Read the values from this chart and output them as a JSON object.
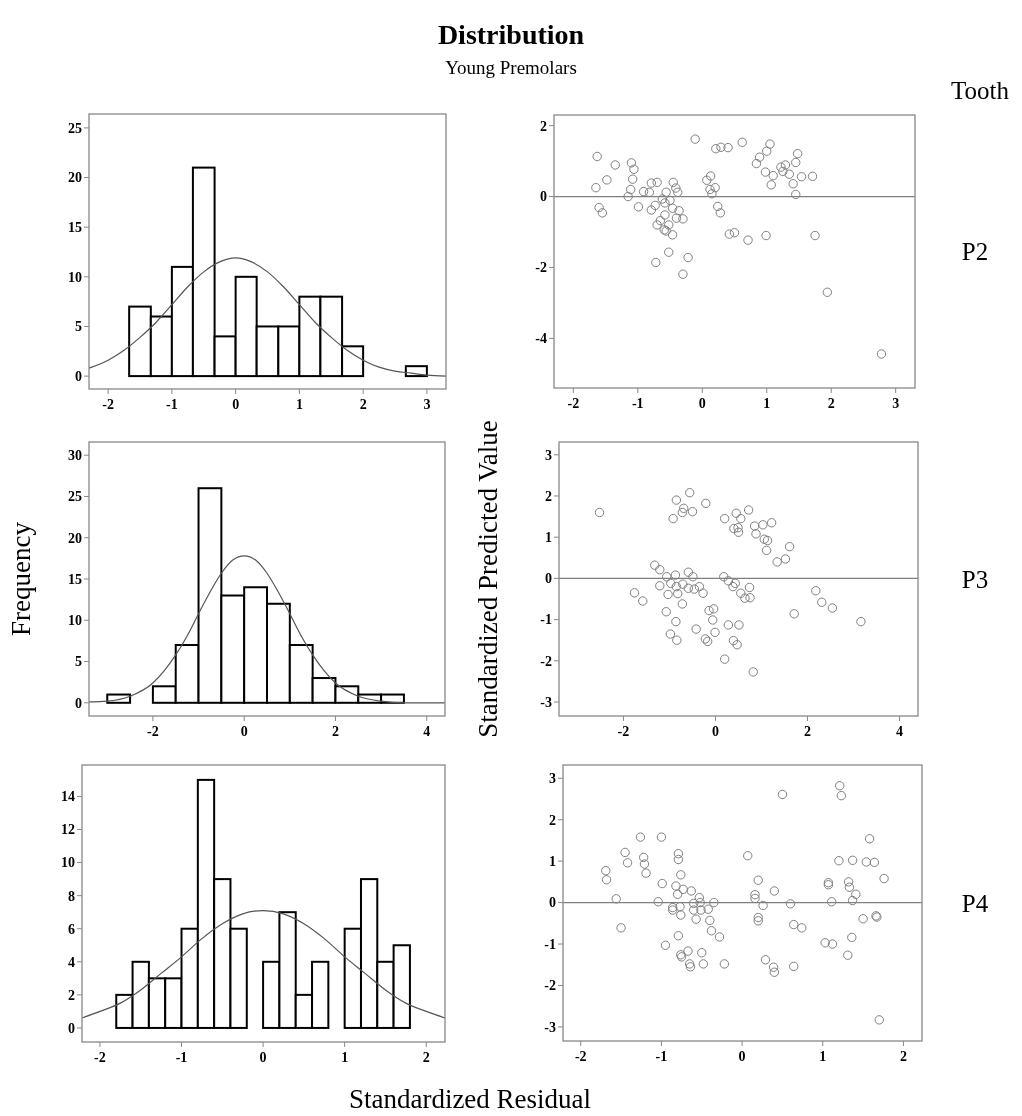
{
  "chart_data": [
    {
      "type": "histogram",
      "title": "Distribution",
      "subtitle": "Young Premolars",
      "bins": [
        -1.67,
        -1.33,
        -1,
        -0.67,
        -0.33,
        0,
        0.33,
        0.67,
        1,
        1.33,
        1.67,
        2,
        2.67,
        3
      ],
      "values": [
        7,
        6,
        11,
        21,
        4,
        10,
        5,
        5,
        8,
        8,
        3,
        0,
        1
      ],
      "color": "#ffffff",
      "xlim": [
        -2.3,
        3.3
      ],
      "ylim": [
        -1.3,
        26.4
      ],
      "xticks": [
        -2,
        -1,
        0,
        1,
        2,
        3
      ],
      "yticks": [
        0,
        5,
        10,
        15,
        20,
        25
      ],
      "series": [
        {
          "type": "line",
          "color": "#555555",
          "x": [
            -2.3,
            -2,
            -1.75,
            -1.5,
            -1.25,
            -1,
            -0.75,
            -0.5,
            -0.25,
            0,
            0.25,
            0.5,
            0.75,
            1,
            1.25,
            1.5,
            1.75,
            2,
            2.25,
            2.5,
            2.75,
            3,
            3.3
          ],
          "values": [
            0.8,
            1.6,
            2.6,
            3.9,
            5.4,
            7.2,
            9,
            10.5,
            11.5,
            11.9,
            11.5,
            10.5,
            9,
            7.2,
            5.4,
            3.9,
            2.6,
            1.6,
            0.9,
            0.5,
            0.3,
            0.1,
            0
          ]
        }
      ]
    },
    {
      "type": "scatter",
      "annotations": [
        "Tooth",
        "P2"
      ],
      "color": "#808080",
      "marker": "circle",
      "xlim": [
        -2.3,
        3.3
      ],
      "ylim": [
        -5.4,
        2.3
      ],
      "xticks": [
        -2,
        -1,
        0,
        1,
        2,
        3
      ],
      "yticks": [
        -4,
        -2,
        0,
        2
      ],
      "ref_lines": [
        {
          "axis": "y",
          "value": 0,
          "color": "#808080"
        }
      ],
      "x": [
        -1.63,
        -1.35,
        -1.65,
        -1.48,
        -1.6,
        -1.55,
        -1.1,
        -1.06,
        -1.08,
        -1.11,
        -1.15,
        -0.99,
        -0.91,
        -0.79,
        -0.7,
        -0.82,
        -0.79,
        -0.73,
        -0.62,
        -0.56,
        -0.45,
        -0.41,
        -0.38,
        -0.58,
        -0.5,
        -0.46,
        -0.36,
        -0.4,
        -0.3,
        -0.58,
        -0.65,
        -0.7,
        -0.52,
        -0.59,
        -0.56,
        -0.46,
        -0.52,
        -0.22,
        -0.72,
        -0.3,
        -0.11,
        0.21,
        0.29,
        0.4,
        0.62,
        0.07,
        0.13,
        0.2,
        0.12,
        0.15,
        0.24,
        0.28,
        0.42,
        0.5,
        0.71,
        0.84,
        0.89,
        1.0,
        1.05,
        0.98,
        1.1,
        1.07,
        0.99,
        1.22,
        1.29,
        1.25,
        1.35,
        1.45,
        1.48,
        1.41,
        1.45,
        1.54,
        1.71,
        1.75,
        1.94,
        2.78
      ],
      "values": [
        1.13,
        0.89,
        0.25,
        0.47,
        -0.31,
        -0.46,
        0.95,
        0.77,
        0.49,
        0.2,
        0,
        -0.29,
        0.14,
        0.38,
        0.4,
        0.12,
        -0.38,
        -0.25,
        -0.07,
        0.12,
        0.4,
        0.24,
        0.12,
        -0.18,
        -0.11,
        -0.33,
        -0.4,
        -0.61,
        -0.63,
        -0.52,
        -0.68,
        -0.8,
        -0.8,
        -0.94,
        -0.97,
        -1.08,
        -1.57,
        -1.72,
        -1.86,
        -2.19,
        1.62,
        1.35,
        1.39,
        1.38,
        1.53,
        0.46,
        0.58,
        0.25,
        0.2,
        0.08,
        -0.28,
        -0.46,
        -1.06,
        -1.02,
        -1.23,
        0.93,
        1.11,
        1.28,
        1.48,
        0.69,
        0.59,
        0.33,
        -1.1,
        0.83,
        0.89,
        0.71,
        0.63,
        0.96,
        1.21,
        0.36,
        0.06,
        0.56,
        0.57,
        -1.1,
        -2.7,
        -4.44
      ]
    },
    {
      "type": "histogram",
      "ylabel": "Frequency",
      "bins": [
        -3,
        -2.5,
        -2,
        -1.5,
        -1,
        -0.5,
        0,
        0.5,
        1,
        1.5,
        2,
        2.5,
        3,
        3.5
      ],
      "values": [
        1,
        0,
        2,
        7,
        26,
        13,
        14,
        12,
        7,
        3,
        2,
        1,
        1
      ],
      "color": "#ffffff",
      "xlim": [
        -3.4,
        4.4
      ],
      "ylim": [
        -1.6,
        31.6
      ],
      "xticks": [
        -2,
        0,
        2,
        4
      ],
      "yticks": [
        0,
        5,
        10,
        15,
        20,
        25,
        30
      ],
      "series": [
        {
          "type": "line",
          "color": "#555555",
          "x": [
            -3.4,
            -3,
            -2.5,
            -2,
            -1.75,
            -1.5,
            -1.25,
            -1,
            -0.75,
            -0.5,
            -0.25,
            0,
            0.25,
            0.5,
            0.75,
            1,
            1.25,
            1.5,
            1.75,
            2,
            2.5,
            3,
            3.5,
            4,
            4.4
          ],
          "values": [
            0.1,
            0.2,
            0.8,
            2.4,
            3.9,
            5.8,
            8.1,
            10.8,
            13.4,
            15.7,
            17.3,
            17.8,
            17.3,
            15.7,
            13.4,
            10.8,
            8.1,
            5.8,
            3.9,
            2.4,
            0.8,
            0.2,
            0,
            0,
            0
          ]
        }
      ]
    },
    {
      "type": "scatter",
      "ylabel": "Standardized Predicted Value",
      "annotations": [
        "P3"
      ],
      "color": "#808080",
      "marker": "circle",
      "xlim": [
        -3.4,
        4.4
      ],
      "ylim": [
        -3.34,
        3.31
      ],
      "xticks": [
        -2,
        0,
        2,
        4
      ],
      "yticks": [
        -3,
        -2,
        -1,
        0,
        1,
        2,
        3
      ],
      "ref_lines": [
        {
          "axis": "y",
          "value": 0,
          "color": "#808080"
        }
      ],
      "x": [
        -2.52,
        -1.76,
        -1.58,
        -1.32,
        -1.21,
        -1.21,
        -1.06,
        -1.03,
        -1.07,
        -0.97,
        -0.92,
        -0.85,
        -0.87,
        -0.85,
        -0.82,
        -0.86,
        -0.98,
        -0.84,
        -0.72,
        -0.69,
        -0.72,
        -0.71,
        -0.59,
        -0.56,
        -0.5,
        -0.49,
        -0.59,
        -0.46,
        -0.35,
        -0.27,
        -0.42,
        -0.21,
        -0.22,
        -0.17,
        -0.14,
        -0.04,
        -0.06,
        -0.01,
        0.2,
        0.18,
        0.28,
        0.38,
        0.43,
        0.28,
        0.39,
        0.47,
        0.51,
        0.2,
        0.45,
        0.55,
        0.4,
        0.49,
        0.5,
        0.55,
        0.64,
        0.75,
        0.74,
        0.72,
        0.82,
        0.85,
        0.88,
        1.03,
        1.06,
        1.13,
        1.11,
        1.22,
        1.34,
        1.52,
        1.61,
        1.71,
        2.18,
        2.31,
        2.54,
        3.16
      ],
      "values": [
        1.6,
        -0.35,
        -0.55,
        0.32,
        0.21,
        -0.18,
        0.04,
        -0.39,
        -0.81,
        -0.12,
        1.45,
        1.9,
        0.08,
        -0.2,
        -0.37,
        -1.05,
        -1.35,
        -1.5,
        -0.62,
        1.7,
        1.6,
        -0.14,
        0.15,
        2.08,
        1.62,
        0.04,
        -0.24,
        -0.26,
        -0.2,
        -0.36,
        -1.23,
        1.82,
        -1.47,
        -1.53,
        -0.78,
        -0.74,
        -1.01,
        -1.31,
        1.45,
        0.04,
        -0.06,
        -0.2,
        -0.12,
        -1.13,
        -1.51,
        -1.61,
        -1.13,
        -1.96,
        1.58,
        1.45,
        1.21,
        1.23,
        1.12,
        -0.36,
        -0.48,
        -0.47,
        -0.22,
        1.66,
        -2.27,
        1.27,
        1.08,
        1.3,
        0.95,
        0.92,
        0.68,
        1.35,
        0.4,
        0.47,
        0.77,
        -0.86,
        -0.3,
        -0.58,
        -0.72,
        -1.05
      ]
    },
    {
      "type": "histogram",
      "xlabel": "Standardized Residual",
      "bins": [
        -1.8,
        -1.6,
        -1.4,
        -1.2,
        -1,
        -0.8,
        -0.6,
        -0.4,
        -0.2,
        0,
        0.2,
        0.4,
        0.6,
        0.8,
        1,
        1.2,
        1.4,
        1.6,
        1.8
      ],
      "values": [
        2,
        4,
        3,
        3,
        6,
        15,
        9,
        6,
        0,
        4,
        7,
        2,
        4,
        0,
        6,
        9,
        4,
        5
      ],
      "color": "#ffffff",
      "xlim": [
        -2.22,
        2.23
      ],
      "ylim": [
        -0.85,
        15.9
      ],
      "xticks": [
        -2,
        -1,
        0,
        1,
        2
      ],
      "yticks": [
        0,
        2,
        4,
        6,
        8,
        10,
        12,
        14
      ],
      "series": [
        {
          "type": "line",
          "color": "#555555",
          "x": [
            -2.22,
            -2,
            -1.75,
            -1.5,
            -1.25,
            -1,
            -0.75,
            -0.5,
            -0.25,
            0,
            0.25,
            0.5,
            0.75,
            1,
            1.25,
            1.5,
            1.75,
            2,
            2.23
          ],
          "values": [
            0.6,
            1,
            1.5,
            2.3,
            3.3,
            4.3,
            5.4,
            6.3,
            6.9,
            7.1,
            6.9,
            6.3,
            5.4,
            4.3,
            3.3,
            2.3,
            1.5,
            1,
            0.6
          ]
        }
      ]
    },
    {
      "type": "scatter",
      "annotations": [
        "P4"
      ],
      "color": "#808080",
      "marker": "circle",
      "xlim": [
        -2.22,
        2.23
      ],
      "ylim": [
        -3.34,
        3.32
      ],
      "xticks": [
        -2,
        -1,
        0,
        1,
        2
      ],
      "yticks": [
        -3,
        -2,
        -1,
        0,
        1,
        2,
        3
      ],
      "ref_lines": [
        {
          "axis": "y",
          "value": 0,
          "color": "#808080"
        }
      ],
      "x": [
        -1.69,
        -1.68,
        -1.56,
        -1.5,
        -1.45,
        -1.42,
        -1.26,
        -1.22,
        -1.21,
        -1.19,
        -1.0,
        -0.99,
        -1.04,
        -0.95,
        -0.86,
        -0.86,
        -0.79,
        -0.79,
        -0.82,
        -0.8,
        -0.76,
        -0.77,
        -0.76,
        -0.79,
        -0.73,
        -0.76,
        -0.75,
        -0.67,
        -0.63,
        -0.65,
        -0.64,
        -0.6,
        -0.6,
        -0.57,
        -0.53,
        -0.52,
        -0.51,
        -0.5,
        -0.48,
        -0.42,
        -0.4,
        -0.38,
        -0.35,
        -0.28,
        -0.22,
        0.07,
        0.16,
        0.16,
        0.2,
        0.2,
        0.2,
        0.26,
        0.29,
        0.4,
        0.39,
        0.4,
        0.5,
        0.6,
        0.64,
        0.64,
        0.74,
        1.03,
        1.07,
        1.07,
        1.11,
        1.12,
        1.2,
        1.21,
        1.23,
        1.32,
        1.33,
        1.31,
        1.37,
        1.37,
        1.36,
        1.41,
        1.5,
        1.54,
        1.58,
        1.64,
        1.66,
        1.67,
        1.76,
        1.7
      ],
      "values": [
        0.77,
        0.55,
        0.09,
        -0.61,
        1.21,
        0.96,
        1.58,
        1.09,
        0.93,
        0.71,
        1.58,
        0.46,
        0.02,
        -1.03,
        -0.12,
        -0.18,
        1.18,
        1.04,
        0.4,
        0.2,
        0.67,
        -0.1,
        -0.3,
        -0.8,
        0.32,
        -1.26,
        -1.31,
        -1.17,
        0.28,
        -1.48,
        -1.55,
        -0.02,
        -0.18,
        -0.4,
        0.12,
        0,
        -0.18,
        -1.21,
        -1.48,
        -0.16,
        -0.43,
        -0.68,
        0,
        -0.83,
        -1.48,
        1.13,
        0.19,
        0.1,
        0.54,
        -0.36,
        -0.44,
        -0.07,
        -1.38,
        0.28,
        -1.56,
        -1.68,
        2.61,
        -0.03,
        -0.53,
        -1.54,
        -0.61,
        -0.97,
        0.48,
        0.43,
        0.02,
        -1.0,
        1.01,
        2.82,
        2.58,
        0.5,
        0.37,
        -1.27,
        1.02,
        0.05,
        -0.84,
        0.2,
        -0.39,
        0.98,
        1.54,
        0.97,
        -0.32,
        -0.35,
        0.58,
        -2.83
      ]
    }
  ]
}
